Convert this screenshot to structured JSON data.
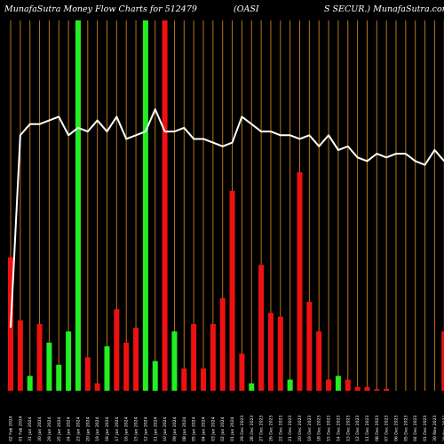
{
  "header": {
    "title_left": "MunafaSutra  Money Flow  Charts for 512479",
    "title_mid": "(OASI",
    "title_right": "S SECUR.) MunafaSutra.com"
  },
  "colors": {
    "background": "#000000",
    "gridline": "#b8741a",
    "up_bar": "#22ee22",
    "down_bar": "#ee1111",
    "price_line": "#ffffff",
    "text": "#ffffff"
  },
  "chart_data": {
    "type": "bar",
    "title": "MunafaSutra  Money Flow  Charts for 512479 (OASIS SECUR.) MunafaSutra.com",
    "ylim": [
      0,
      100
    ],
    "grid": true,
    "categories": [
      "02 Feb 2024",
      "01 Feb 2024",
      "31 Jan 2024",
      "30 Jan 2024",
      "29 Jan 2024",
      "25 Jan 2024",
      "24 Jan 2024",
      "23 Jan 2024",
      "20 Jan 2024",
      "19 Jan 2024",
      "18 Jan 2024",
      "17 Jan 2024",
      "16 Jan 2024",
      "15 Jan 2024",
      "12 Jan 2024",
      "11 Jan 2024",
      "10 Jan 2024",
      "09 Jan 2024",
      "08 Jan 2024",
      "05 Jan 2024",
      "04 Jan 2024",
      "03 Jan 2024",
      "02 Jan 2024",
      "01 Jan 2024",
      "29 Dec 2023",
      "28 Dec 2023",
      "27 Dec 2023",
      "26 Dec 2023",
      "22 Dec 2023",
      "21 Dec 2023",
      "20 Dec 2023",
      "19 Dec 2023",
      "18 Dec 2023",
      "15 Dec 2023",
      "14 Dec 2023",
      "13 Dec 2023",
      "12 Dec 2023",
      "11 Dec 2023",
      "08 Dec 2023",
      "07 Dec 2023",
      "06 Dec 2023",
      "05 Dec 2023",
      "04 Dec 2023",
      "01 Dec 2023",
      "30 Nov 2023",
      "29 Nov 2023"
    ],
    "bar_colors": [
      "red",
      "red",
      "green",
      "red",
      "green",
      "green",
      "green",
      "green",
      "red",
      "red",
      "green",
      "red",
      "red",
      "red",
      "green",
      "green",
      "red",
      "green",
      "red",
      "red",
      "red",
      "red",
      "red",
      "red",
      "red",
      "green",
      "red",
      "red",
      "red",
      "green",
      "red",
      "red",
      "red",
      "red",
      "green",
      "red",
      "red",
      "red",
      "red",
      "red",
      "red",
      "red",
      "red",
      "red",
      "red",
      "red"
    ],
    "series": [
      {
        "values": [
          36,
          19,
          4,
          18,
          13,
          7,
          16,
          100,
          9,
          2,
          12,
          22,
          13,
          17,
          100,
          8,
          100,
          16,
          6,
          18,
          6,
          18,
          25,
          54,
          10,
          2,
          34,
          21,
          20,
          3,
          59,
          24,
          16,
          3,
          4,
          3,
          1,
          1,
          0.4,
          0.5,
          0,
          0,
          0,
          0,
          0,
          16
        ]
      },
      {
        "values": [
          17,
          69,
          72,
          72,
          73,
          74,
          69,
          71,
          70,
          73,
          70,
          74,
          68,
          69,
          70,
          76,
          70,
          70,
          71,
          68,
          68,
          67,
          66,
          67,
          74,
          72,
          70,
          70,
          69,
          69,
          68,
          69,
          66,
          69,
          65,
          66,
          63,
          62,
          64,
          63,
          64,
          64,
          62,
          61,
          65,
          62
        ]
      }
    ]
  }
}
